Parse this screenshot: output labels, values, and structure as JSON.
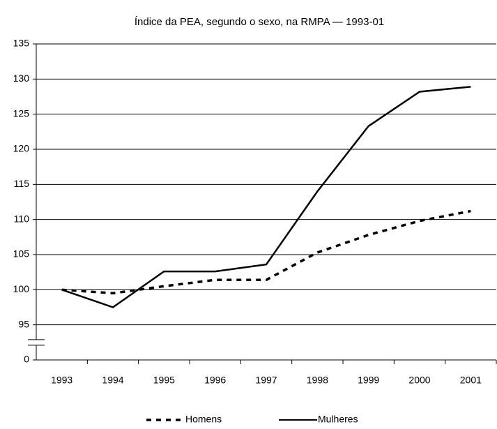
{
  "chart_data": {
    "type": "line",
    "title": "Índice da PEA, segundo o sexo, na RMPA — 1993-01",
    "categories": [
      "1993",
      "1994",
      "1995",
      "1996",
      "1997",
      "1998",
      "1999",
      "2000",
      "2001"
    ],
    "series": [
      {
        "name": "Homens",
        "color": "#000000",
        "dash": true,
        "values": [
          100,
          99.5,
          100.5,
          101.4,
          101.4,
          105.3,
          107.8,
          109.8,
          111.2
        ]
      },
      {
        "name": "Mulheres",
        "color": "#000000",
        "dash": false,
        "values": [
          100,
          97.5,
          102.6,
          102.6,
          103.6,
          114,
          123.3,
          128.2,
          128.9
        ]
      }
    ],
    "ylim": [
      0,
      135
    ],
    "yticks": [
      0,
      95,
      100,
      105,
      110,
      115,
      120,
      125,
      130,
      135
    ],
    "axis_break": true,
    "grid": true,
    "legend": "bottom"
  }
}
